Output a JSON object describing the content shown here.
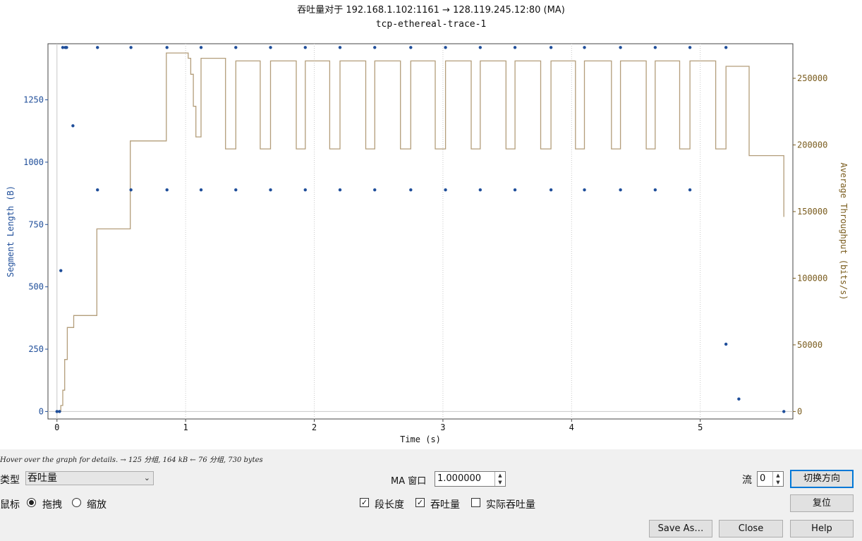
{
  "window": {
    "title": "吞吐量对于 192.168.1.102:1161 → 128.119.245.12:80 (MA)",
    "subtitle": "tcp-ethereal-trace-1"
  },
  "chart_data": {
    "type": "scatter+line",
    "xlabel": "Time (s)",
    "ylabel_left": "Segment Length (B)",
    "ylabel_right": "Average Throughput (bits/s)",
    "xlim": [
      -0.07,
      5.72
    ],
    "ylim_left": [
      -30,
      1475
    ],
    "ylim_right": [
      -5614,
      275926
    ],
    "x_ticks": [
      0,
      1,
      2,
      3,
      4,
      5
    ],
    "y_left_ticks": [
      0,
      250,
      500,
      750,
      1000,
      1250
    ],
    "y_right_ticks": [
      0,
      50000,
      100000,
      150000,
      200000,
      250000
    ],
    "grid": true,
    "series": [
      {
        "name": "段长度",
        "color": "#1f4e9a",
        "kind": "scatter",
        "points": [
          [
            0.0,
            0
          ],
          [
            0.02,
            0
          ],
          [
            0.03,
            565
          ],
          [
            0.045,
            1460
          ],
          [
            0.065,
            1460
          ],
          [
            0.075,
            1460
          ],
          [
            0.124,
            1146
          ],
          [
            0.315,
            1460
          ],
          [
            0.315,
            889
          ],
          [
            0.575,
            1460
          ],
          [
            0.575,
            889
          ],
          [
            0.855,
            1460
          ],
          [
            0.855,
            889
          ],
          [
            1.12,
            1460
          ],
          [
            1.12,
            889
          ],
          [
            1.39,
            1460
          ],
          [
            1.39,
            889
          ],
          [
            1.66,
            1460
          ],
          [
            1.66,
            889
          ],
          [
            1.93,
            1460
          ],
          [
            1.93,
            889
          ],
          [
            2.2,
            1460
          ],
          [
            2.2,
            889
          ],
          [
            2.47,
            1460
          ],
          [
            2.47,
            889
          ],
          [
            2.75,
            1460
          ],
          [
            2.75,
            889
          ],
          [
            3.02,
            1460
          ],
          [
            3.02,
            889
          ],
          [
            3.29,
            1460
          ],
          [
            3.29,
            889
          ],
          [
            3.56,
            1460
          ],
          [
            3.56,
            889
          ],
          [
            3.84,
            1460
          ],
          [
            3.84,
            889
          ],
          [
            4.1,
            1460
          ],
          [
            4.1,
            889
          ],
          [
            4.38,
            1460
          ],
          [
            4.38,
            889
          ],
          [
            4.65,
            1460
          ],
          [
            4.65,
            889
          ],
          [
            4.92,
            1460
          ],
          [
            4.92,
            889
          ],
          [
            5.2,
            1460
          ],
          [
            5.2,
            270
          ],
          [
            5.3,
            50
          ],
          [
            5.65,
            0
          ]
        ]
      },
      {
        "name": "吞吐量",
        "color": "#b39d7a",
        "kind": "step",
        "points": [
          [
            0.0,
            0
          ],
          [
            0.03,
            0
          ],
          [
            0.03,
            4500
          ],
          [
            0.045,
            4500
          ],
          [
            0.045,
            16000
          ],
          [
            0.06,
            16000
          ],
          [
            0.06,
            39000
          ],
          [
            0.08,
            39000
          ],
          [
            0.08,
            63000
          ],
          [
            0.13,
            63000
          ],
          [
            0.13,
            72000
          ],
          [
            0.31,
            72000
          ],
          [
            0.31,
            137000
          ],
          [
            0.57,
            137000
          ],
          [
            0.57,
            203000
          ],
          [
            0.85,
            203000
          ],
          [
            0.85,
            269000
          ],
          [
            1.02,
            269000
          ],
          [
            1.02,
            265000
          ],
          [
            1.04,
            265000
          ],
          [
            1.04,
            253000
          ],
          [
            1.06,
            253000
          ],
          [
            1.06,
            229000
          ],
          [
            1.08,
            229000
          ],
          [
            1.08,
            206000
          ],
          [
            1.12,
            206000
          ],
          [
            1.12,
            265000
          ],
          [
            1.31,
            265000
          ],
          [
            1.31,
            197000
          ],
          [
            1.39,
            197000
          ],
          [
            1.39,
            263000
          ],
          [
            1.58,
            263000
          ],
          [
            1.58,
            197000
          ],
          [
            1.66,
            197000
          ],
          [
            1.66,
            263000
          ],
          [
            1.86,
            263000
          ],
          [
            1.86,
            197000
          ],
          [
            1.93,
            197000
          ],
          [
            1.93,
            263000
          ],
          [
            2.12,
            263000
          ],
          [
            2.12,
            197000
          ],
          [
            2.2,
            197000
          ],
          [
            2.2,
            263000
          ],
          [
            2.4,
            263000
          ],
          [
            2.4,
            197000
          ],
          [
            2.47,
            197000
          ],
          [
            2.47,
            263000
          ],
          [
            2.67,
            263000
          ],
          [
            2.67,
            197000
          ],
          [
            2.75,
            197000
          ],
          [
            2.75,
            263000
          ],
          [
            2.94,
            263000
          ],
          [
            2.94,
            197000
          ],
          [
            3.02,
            197000
          ],
          [
            3.02,
            263000
          ],
          [
            3.22,
            263000
          ],
          [
            3.22,
            197000
          ],
          [
            3.29,
            197000
          ],
          [
            3.29,
            263000
          ],
          [
            3.49,
            263000
          ],
          [
            3.49,
            197000
          ],
          [
            3.56,
            197000
          ],
          [
            3.56,
            263000
          ],
          [
            3.76,
            263000
          ],
          [
            3.76,
            197000
          ],
          [
            3.84,
            197000
          ],
          [
            3.84,
            263000
          ],
          [
            4.03,
            263000
          ],
          [
            4.03,
            197000
          ],
          [
            4.1,
            197000
          ],
          [
            4.1,
            263000
          ],
          [
            4.31,
            263000
          ],
          [
            4.31,
            197000
          ],
          [
            4.38,
            197000
          ],
          [
            4.38,
            263000
          ],
          [
            4.58,
            263000
          ],
          [
            4.58,
            197000
          ],
          [
            4.65,
            197000
          ],
          [
            4.65,
            263000
          ],
          [
            4.84,
            263000
          ],
          [
            4.84,
            197000
          ],
          [
            4.92,
            197000
          ],
          [
            4.92,
            263000
          ],
          [
            5.12,
            263000
          ],
          [
            5.12,
            197000
          ],
          [
            5.2,
            197000
          ],
          [
            5.2,
            259000
          ],
          [
            5.38,
            259000
          ],
          [
            5.38,
            192000
          ],
          [
            5.65,
            192000
          ],
          [
            5.65,
            146000
          ]
        ]
      }
    ]
  },
  "status_text": "Hover over the graph for details. → 125 分组, 164 kB ← 76 分组, 730 bytes",
  "controls": {
    "type_label": "类型",
    "type_value": "吞吐量",
    "ma_window_label": "MA 窗口",
    "ma_window_value": "1.000000",
    "stream_label": "流",
    "stream_value": "0",
    "switch_direction": "切换方向",
    "mouse_label": "鼠标",
    "drag_label": "拖拽",
    "zoom_label": "缩放",
    "reset": "复位",
    "cb_segment_length": "段长度",
    "cb_throughput": "吞吐量",
    "cb_goodput": "实际吞吐量",
    "save_as": "Save As…",
    "close": "Close",
    "help": "Help"
  }
}
